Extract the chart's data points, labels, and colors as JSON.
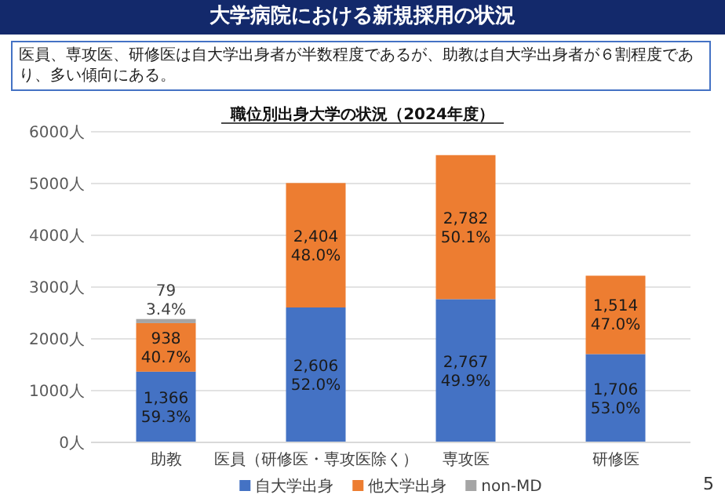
{
  "chart_data": {
    "type": "bar",
    "stacked": true,
    "title": "職位別出身大学の状況（2024年度）",
    "annotations": [
      "大学病院における新規採用の状況",
      "医員、専攻医、研修医は自大学出身者が半数程度であるが、助教は自大学出身者が６割程度であり、多い傾向にある。",
      "5"
    ],
    "categories": [
      "助教",
      "医員（研修医・専攻医除く）",
      "専攻医",
      "研修医"
    ],
    "series": [
      {
        "name": "自大学出身",
        "color": "#4472c4",
        "values": [
          1366,
          2606,
          2767,
          1706
        ],
        "value_labels": [
          "1,366\n59.3%",
          "2,606\n52.0%",
          "2,767\n49.9%",
          "1,706\n53.0%"
        ]
      },
      {
        "name": "他大学出身",
        "color": "#ed7d31",
        "values": [
          938,
          2404,
          2782,
          1514
        ],
        "value_labels": [
          "938\n40.7%",
          "2,404\n48.0%",
          "2,782\n50.1%",
          "1,514\n47.0%"
        ]
      },
      {
        "name": "non-MD",
        "color": "#a5a5a5",
        "values": [
          79,
          null,
          null,
          null
        ],
        "value_labels": [
          "79\n3.4%",
          null,
          null,
          null
        ]
      }
    ],
    "ylim": [
      0,
      6000
    ],
    "yticks": [
      {
        "value": 0,
        "label": "0人"
      },
      {
        "value": 1000,
        "label": "1000人"
      },
      {
        "value": 2000,
        "label": "2000人"
      },
      {
        "value": 3000,
        "label": "3000人"
      },
      {
        "value": 4000,
        "label": "4000人"
      },
      {
        "value": 5000,
        "label": "5000人"
      },
      {
        "value": 6000,
        "label": "6000人"
      }
    ],
    "grid": "y",
    "legend": "bottom"
  }
}
